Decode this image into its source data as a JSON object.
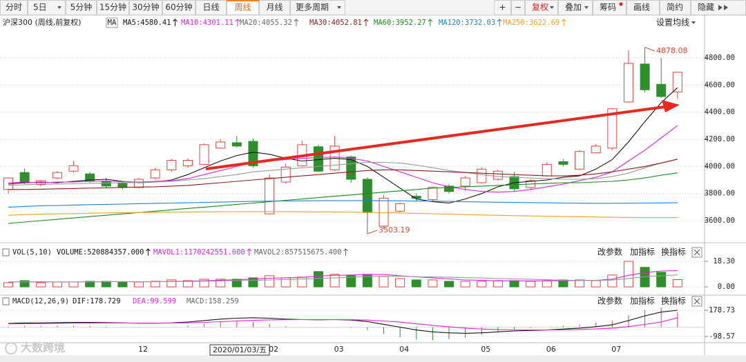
{
  "toolbar": {
    "periods": [
      "分时",
      "5日",
      "5分钟",
      "15分钟",
      "30分钟",
      "60分钟",
      "日线",
      "周线",
      "月线",
      "更多周期"
    ],
    "tools": [
      "+",
      "−",
      "复权",
      "叠加",
      "筹码",
      "画线",
      "简约",
      "隐藏"
    ]
  },
  "chart_data": [
    {
      "type": "candlestick",
      "title": "沪深300 (周线,前复权)",
      "indicator": "MA",
      "settings_button": "设置均线",
      "legend": [
        {
          "text": "MA5:4580.41",
          "color": "#111111"
        },
        {
          "text": "MA10:4301.11",
          "color": "#e020e0"
        },
        {
          "text": "MA20:4055.32",
          "color": "#666666"
        },
        {
          "text": "MA30:4052.81",
          "color": "#8b1a1a"
        },
        {
          "text": "MA60:3952.27",
          "color": "#1a8a1a"
        },
        {
          "text": "MA120:3732.03",
          "color": "#1e7fd0"
        },
        {
          "text": "MA250:3622.69",
          "color": "#f0a020"
        }
      ],
      "up_color": "#e8403a",
      "down_color": "#2f8f2f",
      "categories": [
        null,
        null,
        null,
        null,
        null,
        null,
        null,
        null,
        "12",
        null,
        null,
        null,
        null,
        null,
        null,
        null,
        "02",
        null,
        null,
        null,
        "03",
        null,
        null,
        null,
        "04",
        null,
        null,
        null,
        null,
        "05",
        null,
        null,
        null,
        "06",
        null,
        null,
        null,
        "07",
        null,
        null,
        null,
        null
      ],
      "cursor_label": "2020/01/03/五",
      "candles": [
        {
          "open": 3830,
          "high": 3920,
          "low": 3800,
          "close": 3915
        },
        {
          "open": 3955,
          "high": 3985,
          "low": 3870,
          "close": 3880
        },
        {
          "open": 3865,
          "high": 3900,
          "low": 3855,
          "close": 3895
        },
        {
          "open": 3915,
          "high": 3965,
          "low": 3905,
          "close": 3955
        },
        {
          "open": 3965,
          "high": 4040,
          "low": 3955,
          "close": 4005
        },
        {
          "open": 3945,
          "high": 3955,
          "low": 3880,
          "close": 3890
        },
        {
          "open": 3890,
          "high": 3915,
          "low": 3845,
          "close": 3855
        },
        {
          "open": 3875,
          "high": 3890,
          "low": 3830,
          "close": 3845
        },
        {
          "open": 3845,
          "high": 3915,
          "low": 3840,
          "close": 3905
        },
        {
          "open": 3915,
          "high": 3990,
          "low": 3905,
          "close": 3975
        },
        {
          "open": 3975,
          "high": 4055,
          "low": 3960,
          "close": 4045
        },
        {
          "open": 4005,
          "high": 4060,
          "low": 3990,
          "close": 4045
        },
        {
          "open": 4015,
          "high": 4170,
          "low": 4010,
          "close": 4160
        },
        {
          "open": 4135,
          "high": 4200,
          "low": 4130,
          "close": 4180
        },
        {
          "open": 4175,
          "high": 4225,
          "low": 4140,
          "close": 4150
        },
        {
          "open": 4185,
          "high": 4205,
          "low": 3990,
          "close": 4005
        },
        {
          "open": 3650,
          "high": 3940,
          "low": 3645,
          "close": 3915
        },
        {
          "open": 3885,
          "high": 4020,
          "low": 3875,
          "close": 3995
        },
        {
          "open": 4005,
          "high": 4190,
          "low": 4000,
          "close": 4160
        },
        {
          "open": 4145,
          "high": 4160,
          "low": 3955,
          "close": 3965
        },
        {
          "open": 3975,
          "high": 4225,
          "low": 3965,
          "close": 4150
        },
        {
          "open": 4070,
          "high": 4080,
          "low": 3880,
          "close": 3905
        },
        {
          "open": 3905,
          "high": 3920,
          "low": 3503.19,
          "close": 3660
        },
        {
          "open": 3560,
          "high": 3790,
          "low": 3540,
          "close": 3765
        },
        {
          "open": 3670,
          "high": 3735,
          "low": 3660,
          "close": 3725
        },
        {
          "open": 3780,
          "high": 3800,
          "low": 3740,
          "close": 3765
        },
        {
          "open": 3755,
          "high": 3850,
          "low": 3745,
          "close": 3845
        },
        {
          "open": 3855,
          "high": 3870,
          "low": 3800,
          "close": 3815
        },
        {
          "open": 3855,
          "high": 3930,
          "low": 3820,
          "close": 3915
        },
        {
          "open": 3880,
          "high": 3995,
          "low": 3875,
          "close": 3980
        },
        {
          "open": 3905,
          "high": 3975,
          "low": 3895,
          "close": 3965
        },
        {
          "open": 3925,
          "high": 3960,
          "low": 3820,
          "close": 3835
        },
        {
          "open": 3845,
          "high": 3905,
          "low": 3830,
          "close": 3895
        },
        {
          "open": 3930,
          "high": 4030,
          "low": 3925,
          "close": 4015
        },
        {
          "open": 4035,
          "high": 4055,
          "low": 4000,
          "close": 4015
        },
        {
          "open": 3980,
          "high": 4120,
          "low": 3975,
          "close": 4110
        },
        {
          "open": 4100,
          "high": 4165,
          "low": 4095,
          "close": 4150
        },
        {
          "open": 4135,
          "high": 4430,
          "low": 4120,
          "close": 4425
        },
        {
          "open": 4475,
          "high": 4855,
          "low": 4470,
          "close": 4760
        },
        {
          "open": 4755,
          "high": 4878.08,
          "low": 4545,
          "close": 4565
        },
        {
          "open": 4605,
          "high": 4800,
          "low": 4505,
          "close": 4515
        },
        {
          "open": 4550,
          "high": 4695,
          "low": 4500,
          "close": 4695
        }
      ],
      "lines": [
        {
          "color": "#111111",
          "values": [
            3870,
            3880,
            3885,
            3880,
            3890,
            3900,
            3905,
            3890,
            3880,
            3885,
            3900,
            3940,
            3990,
            4040,
            4080,
            4105,
            4090,
            4060,
            4040,
            4050,
            4060,
            4050,
            4000,
            3920,
            3840,
            3760,
            3740,
            3730,
            3760,
            3800,
            3850,
            3880,
            3890,
            3900,
            3920,
            3930,
            3980,
            4050,
            4180,
            4330,
            4470,
            4580.41
          ]
        },
        {
          "color": "#e020e0",
          "values": [
            3880,
            3885,
            3880,
            3885,
            3885,
            3890,
            3892,
            3888,
            3885,
            3890,
            3895,
            3910,
            3940,
            3970,
            4000,
            4030,
            4040,
            4050,
            4060,
            4065,
            4070,
            4060,
            4040,
            4000,
            3960,
            3920,
            3880,
            3850,
            3830,
            3815,
            3810,
            3815,
            3830,
            3850,
            3870,
            3895,
            3920,
            3960,
            4040,
            4120,
            4210,
            4301.11
          ]
        },
        {
          "color": "#999999",
          "values": [
            3860,
            3865,
            3870,
            3870,
            3872,
            3875,
            3878,
            3880,
            3882,
            3885,
            3890,
            3900,
            3910,
            3925,
            3940,
            3960,
            3970,
            3980,
            3990,
            4000,
            4010,
            4020,
            4030,
            4030,
            4025,
            4010,
            3990,
            3970,
            3955,
            3940,
            3925,
            3920,
            3915,
            3910,
            3905,
            3905,
            3910,
            3925,
            3950,
            3990,
            4025,
            4055.32
          ]
        },
        {
          "color": "#8b1a1a",
          "values": [
            3830,
            3830,
            3832,
            3835,
            3837,
            3840,
            3842,
            3845,
            3848,
            3850,
            3855,
            3860,
            3870,
            3880,
            3890,
            3900,
            3910,
            3920,
            3930,
            3940,
            3950,
            3960,
            3970,
            3975,
            3975,
            3970,
            3965,
            3960,
            3955,
            3950,
            3945,
            3940,
            3935,
            3930,
            3930,
            3935,
            3945,
            3960,
            3980,
            4000,
            4025,
            4052.81
          ]
        },
        {
          "color": "#1a8a1a",
          "values": [
            3580,
            3590,
            3600,
            3610,
            3620,
            3630,
            3640,
            3650,
            3660,
            3670,
            3680,
            3690,
            3700,
            3710,
            3720,
            3730,
            3740,
            3750,
            3760,
            3770,
            3780,
            3790,
            3800,
            3810,
            3820,
            3830,
            3840,
            3845,
            3850,
            3855,
            3860,
            3865,
            3870,
            3875,
            3880,
            3880,
            3885,
            3890,
            3900,
            3915,
            3935,
            3952.27
          ]
        },
        {
          "color": "#1e7fd0",
          "values": [
            3700,
            3705,
            3710,
            3712,
            3715,
            3718,
            3720,
            3722,
            3725,
            3728,
            3730,
            3732,
            3735,
            3737,
            3740,
            3742,
            3744,
            3745,
            3746,
            3747,
            3748,
            3748,
            3748,
            3747,
            3746,
            3745,
            3744,
            3742,
            3740,
            3738,
            3736,
            3735,
            3733,
            3732,
            3730,
            3729,
            3728,
            3728,
            3729,
            3730,
            3731,
            3732.03
          ]
        },
        {
          "color": "#f0a020",
          "values": [
            3640,
            3645,
            3648,
            3650,
            3652,
            3655,
            3657,
            3658,
            3660,
            3662,
            3663,
            3664,
            3665,
            3666,
            3666,
            3667,
            3667,
            3667,
            3666,
            3665,
            3664,
            3663,
            3661,
            3659,
            3657,
            3654,
            3651,
            3648,
            3645,
            3642,
            3640,
            3637,
            3635,
            3633,
            3631,
            3629,
            3627,
            3625,
            3624,
            3623,
            3623,
            3622.69
          ]
        }
      ],
      "ylim": [
        3437.5,
        5013.5
      ],
      "yticks": [
        {
          "value": 3600,
          "label": "3600.00"
        },
        {
          "value": 3800,
          "label": "3800.00"
        },
        {
          "value": 4000,
          "label": "4000.00"
        },
        {
          "value": 4200,
          "label": "4200.00"
        },
        {
          "value": 4400,
          "label": "4400.00"
        },
        {
          "value": 4600,
          "label": "4600.00"
        },
        {
          "value": 4800,
          "label": "4800.00"
        }
      ],
      "grid": true
    },
    {
      "type": "volume",
      "title": "VOL(5,10)",
      "buttons": [
        "改参数",
        "加指标",
        "换指标"
      ],
      "legend": [
        {
          "text": "VOLUME:520884357.000",
          "color": "#111111"
        },
        {
          "text": "MAVOL1:1170242551.600",
          "color": "#e020e0"
        },
        {
          "text": "MAVOL2:857515675.400",
          "color": "#666666"
        }
      ],
      "values": [
        3,
        4.5,
        3,
        3.5,
        3.5,
        4,
        4,
        3.5,
        3.5,
        4,
        5,
        4.5,
        5.5,
        5.5,
        5.5,
        6.5,
        8,
        6.5,
        7,
        11,
        9,
        8.5,
        9,
        7.5,
        6,
        5,
        5,
        4,
        4,
        4,
        4.5,
        4.5,
        4,
        4.5,
        5,
        5,
        4.5,
        8.5,
        18.3,
        14,
        10.5,
        5.21
      ],
      "lines": [
        {
          "color": "#e020e0",
          "values": [
            3.5,
            3.6,
            3.6,
            3.5,
            3.5,
            3.7,
            3.8,
            3.8,
            3.7,
            3.7,
            3.9,
            4.1,
            4.4,
            4.8,
            5.2,
            5.5,
            6.2,
            6.5,
            6.8,
            7.8,
            8.3,
            8.5,
            8.9,
            8.9,
            8,
            7.2,
            6.5,
            5.7,
            5,
            4.8,
            4.3,
            4.3,
            4.3,
            4.3,
            4.4,
            4.6,
            4.7,
            5.5,
            8.3,
            10.2,
            11.4,
            11.7
          ]
        },
        {
          "color": "#999999",
          "values": [
            3.6,
            3.6,
            3.7,
            3.6,
            3.6,
            3.6,
            3.7,
            3.7,
            3.7,
            3.7,
            3.8,
            3.9,
            4.1,
            4.3,
            4.5,
            4.7,
            5,
            5.3,
            5.6,
            6,
            6.5,
            7,
            7.4,
            7.6,
            7.6,
            7.3,
            7.1,
            6.9,
            6.6,
            6.4,
            6,
            5.7,
            5.4,
            5.2,
            4.7,
            4.7,
            4.7,
            4.9,
            6,
            7.3,
            8,
            8.575
          ]
        }
      ],
      "ylim": [
        -5.9,
        29.7
      ],
      "yticks": [
        {
          "value": 0,
          "label": "0.00"
        },
        {
          "value": 18.3,
          "label": "18.30"
        }
      ]
    },
    {
      "type": "macd",
      "title": "MACD(12,26,9)",
      "buttons": [
        "改参数",
        "加指标",
        "换指标"
      ],
      "legend": [
        {
          "text": "DIF:178.729",
          "color": "#111111"
        },
        {
          "text": "DEA:99.599",
          "color": "#e020e0"
        },
        {
          "text": "MACD:158.259",
          "color": "#666666"
        }
      ],
      "lines": [
        {
          "color": "#111111",
          "values": [
            40,
            45,
            45,
            48,
            50,
            50,
            48,
            45,
            42,
            42,
            45,
            55,
            70,
            85,
            95,
            100,
            95,
            85,
            80,
            78,
            80,
            75,
            60,
            30,
            0,
            -30,
            -50,
            -60,
            -65,
            -60,
            -50,
            -40,
            -35,
            -30,
            -20,
            -10,
            5,
            25,
            70,
            120,
            160,
            178.729
          ]
        },
        {
          "color": "#e020e0",
          "values": [
            35,
            37,
            38,
            40,
            42,
            43,
            44,
            44,
            44,
            43,
            44,
            46,
            51,
            58,
            65,
            72,
            77,
            79,
            80,
            80,
            80,
            79,
            75,
            66,
            53,
            36,
            19,
            3,
            -10,
            -20,
            -26,
            -29,
            -30,
            -30,
            -28,
            -25,
            -19,
            -10,
            6,
            29,
            55,
            99.599
          ]
        }
      ],
      "histogram": [
        10,
        16,
        14,
        16,
        16,
        14,
        8,
        2,
        -4,
        -2,
        2,
        18,
        38,
        54,
        60,
        56,
        36,
        12,
        0,
        -4,
        0,
        -8,
        -30,
        -72,
        -106,
        -132,
        -138,
        -126,
        -110,
        -80,
        -48,
        -22,
        -10,
        0,
        16,
        30,
        48,
        70,
        128,
        182,
        210,
        158.259
      ],
      "ylim": [
        -164.2,
        339.3
      ],
      "yticks": [
        {
          "value": -98.57,
          "label": "-98.57"
        },
        {
          "value": 178.73,
          "label": "178.73"
        }
      ]
    }
  ],
  "watermark": "大数跨境"
}
